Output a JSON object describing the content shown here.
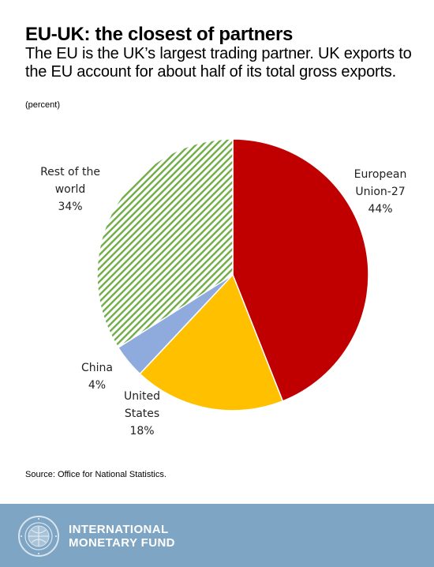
{
  "header": {
    "title": "EU-UK: the closest of partners",
    "subtitle": "The EU is the UK’s largest trading partner. UK exports to the EU account for about half of its total gross exports.",
    "unit": "(percent)"
  },
  "chart_data": {
    "type": "pie",
    "slices": [
      {
        "label_lines": [
          "European",
          "Union-27"
        ],
        "value": 44,
        "value_label": "44%",
        "color": "#c00000",
        "pattern": "solid"
      },
      {
        "label_lines": [
          "United",
          "States"
        ],
        "value": 18,
        "value_label": "18%",
        "color": "#ffc000",
        "pattern": "solid"
      },
      {
        "label_lines": [
          "China"
        ],
        "value": 4,
        "value_label": "4%",
        "color": "#8faadc",
        "pattern": "solid"
      },
      {
        "label_lines": [
          "Rest of the",
          "world"
        ],
        "value": 34,
        "value_label": "34%",
        "color": "#70ad47",
        "pattern": "diagonal-hatch"
      }
    ],
    "start": "12 o'clock",
    "direction": "clockwise",
    "legend": "none"
  },
  "source": "Source: Office for National Statistics.",
  "footer": {
    "org_line1": "INTERNATIONAL",
    "org_line2": "MONETARY FUND",
    "background_color": "#7ea5c4"
  }
}
